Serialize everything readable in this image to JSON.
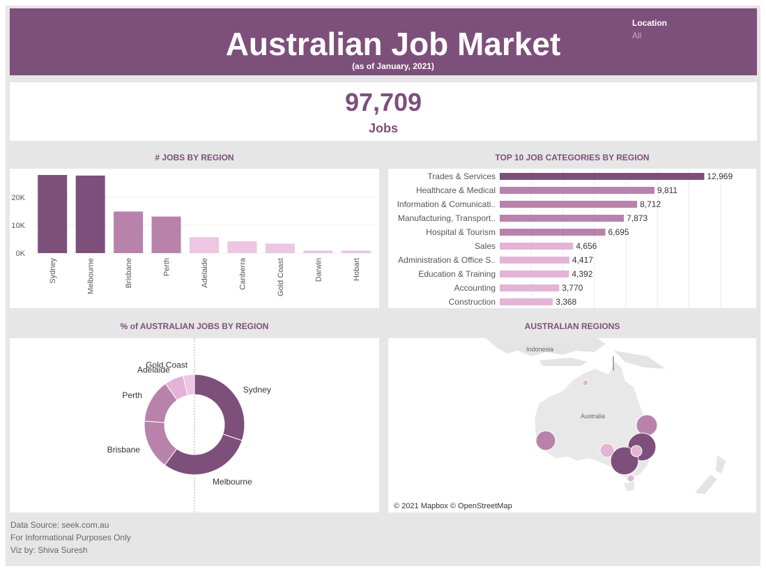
{
  "header": {
    "title": "Australian Job Market",
    "subtitle": "(as of January, 2021)",
    "filter_label": "Location",
    "filter_value": "All"
  },
  "kpi": {
    "value": "97,709",
    "label": "Jobs"
  },
  "sections": {
    "jobs_by_region": "# JOBS BY REGION",
    "top_categories": "TOP 10 JOB CATEGORIES BY REGION",
    "pct_by_region": "% of AUSTRALIAN JOBS BY REGION",
    "regions_map": "AUSTRALIAN REGIONS"
  },
  "colors": {
    "dark": "#7d4f7b",
    "mid": "#b882ab",
    "light": "#e3b4d6",
    "pale": "#ecc6e2",
    "band": "#7d4f7b"
  },
  "chart_data": [
    {
      "type": "bar",
      "title": "# JOBS BY REGION",
      "categories": [
        "Sydney",
        "Melbourne",
        "Brisbane",
        "Perth",
        "Adelaide",
        "Canberra",
        "Gold Coast",
        "Darwin",
        "Hobart"
      ],
      "values": [
        28000,
        27800,
        14900,
        13100,
        5700,
        4200,
        3400,
        900,
        900
      ],
      "y_ticks": [
        {
          "value": 0,
          "label": "0K"
        },
        {
          "value": 10000,
          "label": "10K"
        },
        {
          "value": 20000,
          "label": "20K"
        }
      ],
      "ylim": [
        0,
        29000
      ]
    },
    {
      "type": "bar",
      "orientation": "horizontal",
      "title": "TOP 10 JOB CATEGORIES BY REGION",
      "categories": [
        "Trades & Services",
        "Healthcare & Medical",
        "Information & Comunicati..",
        "Manufacturing, Transport..",
        "Hospital & Tourism",
        "Sales",
        "Administration & Office S..",
        "Education & Training",
        "Accounting",
        "Construction"
      ],
      "values": [
        12969,
        9811,
        8712,
        7873,
        6695,
        4656,
        4417,
        4392,
        3770,
        3368
      ],
      "value_labels": [
        "12,969",
        "9,811",
        "8,712",
        "7,873",
        "6,695",
        "4,656",
        "4,417",
        "4,392",
        "3,770",
        "3,368"
      ],
      "xlim": [
        0,
        16000
      ]
    },
    {
      "type": "pie",
      "title": "% of AUSTRALIAN JOBS BY REGION",
      "labels": [
        "Sydney",
        "Melbourne",
        "Brisbane",
        "Perth",
        "Adelaide",
        "Gold Coast"
      ],
      "values": [
        28000,
        27800,
        14900,
        13100,
        5700,
        3400
      ]
    }
  ],
  "map": {
    "labels": {
      "indonesia": "Indonesia",
      "australia": "Australia"
    },
    "attribution": "© 2021 Mapbox © OpenStreetMap"
  },
  "footer": {
    "source": "Data Source: seek.com.au",
    "note": "For Informational Purposes Only",
    "credit": "Viz by: Shiva Suresh"
  }
}
